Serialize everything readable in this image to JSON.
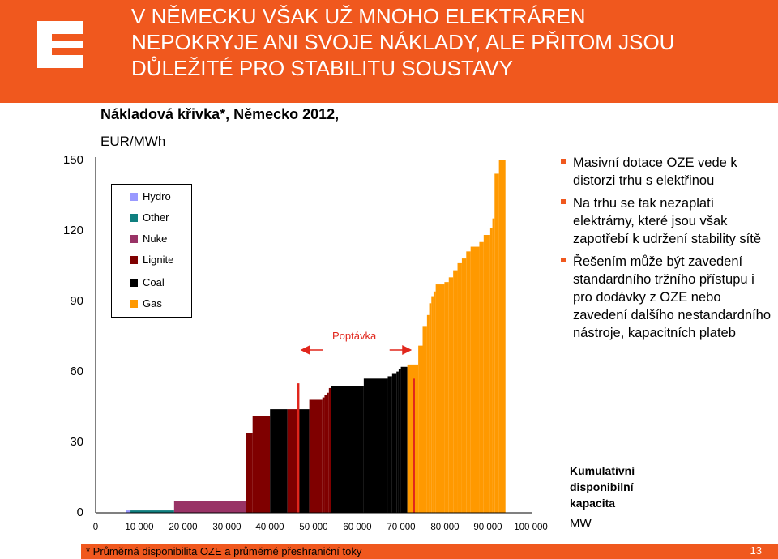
{
  "header": {
    "title_lines": [
      "V NĚMECKU VŠAK UŽ MNOHO ELEKTRÁREN",
      "NEPOKRYJE ANI SVOJE NÁKLADY, ALE PŘITOM JSOU",
      "DŮLEŽITÉ PRO STABILITU SOUSTAVY"
    ]
  },
  "logo_icon": "cez-logo",
  "colors": {
    "brand": "#F0581E",
    "demand_line": "#E1261C"
  },
  "bullets": [
    "Masivní dotace OZE vede k distorzi trhu s elektřinou",
    "Na trhu se tak nezaplatí elektrárny, které jsou však zapotřebí k udržení stability sítě",
    "Řešením může být zavedení standardního tržního přístupu i pro dodávky z OZE nebo zavedení dalšího nestandardního nástroje, kapacitních plateb"
  ],
  "x_axis_label_lines": [
    "Kumulativní",
    "disponibilní",
    "kapacita"
  ],
  "x_axis_unit": "MW",
  "footer": {
    "footnote": "* Průměrná disponibilita OZE a průměrné přeshraniční toky",
    "page": "13"
  },
  "chart_data": {
    "type": "bar",
    "title": "Nákladová křivka*, Německo 2012,",
    "ylabel": "EUR/MWh",
    "xlabel": "Kumulativní disponibilní kapacita MW",
    "ylim": [
      0,
      150
    ],
    "xlim": [
      0,
      100000
    ],
    "y_ticks": [
      "0",
      "30",
      "60",
      "90",
      "120",
      "150"
    ],
    "x_ticks": [
      "0",
      "10 000",
      "20 000",
      "30 000",
      "40 000",
      "50 000",
      "60 000",
      "70 000",
      "80 000",
      "90 000",
      "100 000"
    ],
    "legend": [
      {
        "name": "Hydro",
        "color": "#9999FF"
      },
      {
        "name": "Other",
        "color": "#0F7F7F"
      },
      {
        "name": "Nuke",
        "color": "#993366"
      },
      {
        "name": "Lignite",
        "color": "#7F0000"
      },
      {
        "name": "Coal",
        "color": "#000000"
      },
      {
        "name": "Gas",
        "color": "#FF9900"
      }
    ],
    "demand_label": "Poptávka",
    "demand_lines": [
      {
        "x": 46500,
        "y_from": 0,
        "y_to": 55
      },
      {
        "x": 73000,
        "y_from": 0,
        "y_to": 57
      }
    ],
    "steps": [
      {
        "fuel": "Hydro",
        "x0": 7000,
        "x1": 8000,
        "y": 1
      },
      {
        "fuel": "Other",
        "x0": 8000,
        "x1": 18000,
        "y": 1
      },
      {
        "fuel": "Nuke",
        "x0": 18000,
        "x1": 34500,
        "y": 5
      },
      {
        "fuel": "Lignite",
        "x0": 34500,
        "x1": 36000,
        "y": 34
      },
      {
        "fuel": "Lignite",
        "x0": 36000,
        "x1": 40000,
        "y": 41
      },
      {
        "fuel": "Coal",
        "x0": 40000,
        "x1": 44000,
        "y": 44
      },
      {
        "fuel": "Lignite",
        "x0": 44000,
        "x1": 46500,
        "y": 44
      },
      {
        "fuel": "Coal",
        "x0": 46500,
        "x1": 49000,
        "y": 44
      },
      {
        "fuel": "Lignite",
        "x0": 49000,
        "x1": 52000,
        "y": 48
      },
      {
        "fuel": "Lignite",
        "x0": 52000,
        "x1": 52500,
        "y": 49
      },
      {
        "fuel": "Lignite",
        "x0": 52500,
        "x1": 53000,
        "y": 50
      },
      {
        "fuel": "Lignite",
        "x0": 53000,
        "x1": 53500,
        "y": 51
      },
      {
        "fuel": "Lignite",
        "x0": 53500,
        "x1": 54000,
        "y": 53
      },
      {
        "fuel": "Coal",
        "x0": 54000,
        "x1": 61500,
        "y": 54
      },
      {
        "fuel": "Coal",
        "x0": 61500,
        "x1": 67000,
        "y": 57
      },
      {
        "fuel": "Coal",
        "x0": 67000,
        "x1": 68000,
        "y": 58
      },
      {
        "fuel": "Coal",
        "x0": 68000,
        "x1": 69000,
        "y": 59
      },
      {
        "fuel": "Coal",
        "x0": 69000,
        "x1": 69500,
        "y": 60
      },
      {
        "fuel": "Coal",
        "x0": 69500,
        "x1": 70000,
        "y": 61
      },
      {
        "fuel": "Coal",
        "x0": 70000,
        "x1": 71500,
        "y": 62
      },
      {
        "fuel": "Gas",
        "x0": 71500,
        "x1": 74000,
        "y": 63
      },
      {
        "fuel": "Gas",
        "x0": 74000,
        "x1": 75000,
        "y": 71
      },
      {
        "fuel": "Gas",
        "x0": 75000,
        "x1": 76000,
        "y": 79
      },
      {
        "fuel": "Gas",
        "x0": 76000,
        "x1": 76500,
        "y": 84
      },
      {
        "fuel": "Gas",
        "x0": 76500,
        "x1": 77000,
        "y": 89
      },
      {
        "fuel": "Gas",
        "x0": 77000,
        "x1": 77500,
        "y": 92
      },
      {
        "fuel": "Gas",
        "x0": 77500,
        "x1": 78000,
        "y": 94
      },
      {
        "fuel": "Gas",
        "x0": 78000,
        "x1": 80000,
        "y": 97
      },
      {
        "fuel": "Gas",
        "x0": 80000,
        "x1": 81000,
        "y": 98
      },
      {
        "fuel": "Gas",
        "x0": 81000,
        "x1": 82000,
        "y": 100
      },
      {
        "fuel": "Gas",
        "x0": 82000,
        "x1": 83000,
        "y": 103
      },
      {
        "fuel": "Gas",
        "x0": 83000,
        "x1": 84000,
        "y": 106
      },
      {
        "fuel": "Gas",
        "x0": 84000,
        "x1": 85000,
        "y": 108
      },
      {
        "fuel": "Gas",
        "x0": 85000,
        "x1": 86000,
        "y": 111
      },
      {
        "fuel": "Gas",
        "x0": 86000,
        "x1": 88000,
        "y": 113
      },
      {
        "fuel": "Gas",
        "x0": 88000,
        "x1": 89000,
        "y": 115
      },
      {
        "fuel": "Gas",
        "x0": 89000,
        "x1": 90500,
        "y": 118
      },
      {
        "fuel": "Gas",
        "x0": 90500,
        "x1": 91000,
        "y": 121
      },
      {
        "fuel": "Gas",
        "x0": 91000,
        "x1": 91500,
        "y": 125
      },
      {
        "fuel": "Gas",
        "x0": 91500,
        "x1": 92500,
        "y": 144
      },
      {
        "fuel": "Gas",
        "x0": 92500,
        "x1": 94000,
        "y": 150
      }
    ]
  }
}
